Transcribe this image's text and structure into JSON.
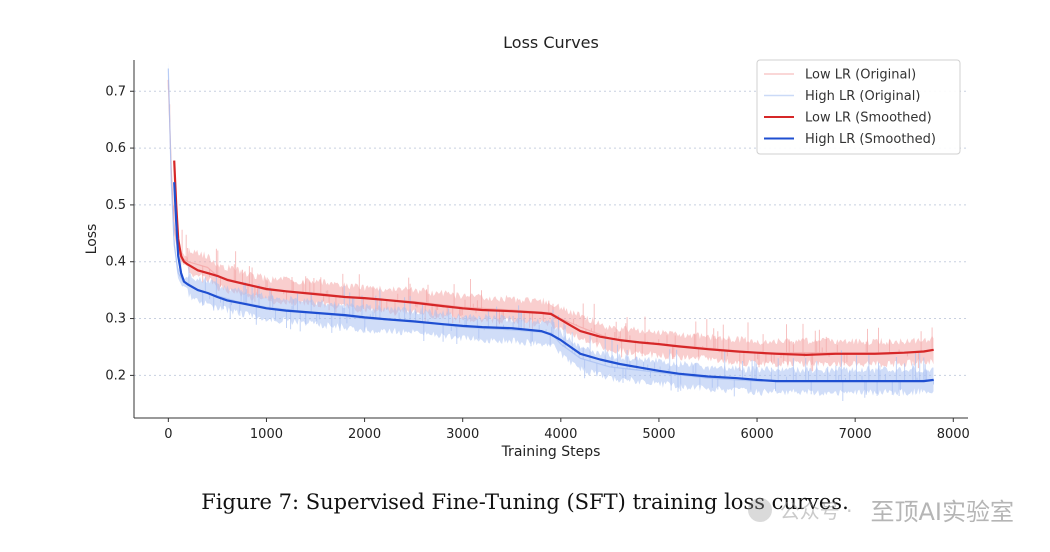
{
  "chart_data": {
    "type": "line",
    "title": "Loss Curves",
    "xlabel": "Training Steps",
    "ylabel": "Loss",
    "xlim": [
      -350,
      8150
    ],
    "ylim": [
      0.125,
      0.755
    ],
    "xticks": [
      0,
      1000,
      2000,
      3000,
      4000,
      5000,
      6000,
      7000,
      8000
    ],
    "yticks": [
      0.2,
      0.3,
      0.4,
      0.5,
      0.6,
      0.7
    ],
    "grid": "horizontal",
    "legend_position": "top-right",
    "series": [
      {
        "name": "Low LR (Original)",
        "style": "raw",
        "color": "#f4a6a6",
        "x": [
          0,
          30,
          60,
          100,
          150,
          200,
          300,
          400,
          500,
          700,
          1000,
          1500,
          2000,
          2500,
          3000,
          3500,
          3900,
          4000,
          4200,
          4500,
          5000,
          5500,
          6000,
          6500,
          7000,
          7500,
          7800
        ],
        "values": [
          0.72,
          0.56,
          0.46,
          0.42,
          0.405,
          0.4,
          0.395,
          0.39,
          0.375,
          0.365,
          0.35,
          0.345,
          0.335,
          0.33,
          0.32,
          0.315,
          0.31,
          0.3,
          0.285,
          0.265,
          0.255,
          0.248,
          0.24,
          0.24,
          0.24,
          0.24,
          0.245
        ]
      },
      {
        "name": "High LR (Original)",
        "style": "raw",
        "color": "#a9c1f2",
        "x": [
          0,
          30,
          60,
          100,
          150,
          200,
          300,
          400,
          500,
          700,
          1000,
          1500,
          2000,
          2500,
          3000,
          3500,
          3900,
          4000,
          4200,
          4500,
          5000,
          5500,
          6000,
          6500,
          7000,
          7500,
          7800
        ],
        "values": [
          0.74,
          0.54,
          0.43,
          0.38,
          0.365,
          0.36,
          0.35,
          0.345,
          0.34,
          0.33,
          0.32,
          0.31,
          0.3,
          0.295,
          0.285,
          0.28,
          0.275,
          0.255,
          0.23,
          0.215,
          0.205,
          0.195,
          0.19,
          0.19,
          0.19,
          0.19,
          0.192
        ]
      },
      {
        "name": "Low LR (Smoothed)",
        "style": "smoothed",
        "color": "#d62728",
        "x": [
          60,
          80,
          100,
          130,
          160,
          200,
          300,
          400,
          500,
          600,
          800,
          1000,
          1200,
          1500,
          1800,
          2000,
          2200,
          2500,
          2800,
          3000,
          3200,
          3500,
          3800,
          3900,
          4000,
          4100,
          4200,
          4400,
          4600,
          4800,
          5000,
          5200,
          5500,
          5800,
          6000,
          6200,
          6500,
          6800,
          7000,
          7200,
          7500,
          7700,
          7800
        ],
        "values": [
          0.578,
          0.5,
          0.44,
          0.41,
          0.4,
          0.395,
          0.385,
          0.38,
          0.375,
          0.368,
          0.36,
          0.352,
          0.348,
          0.343,
          0.338,
          0.336,
          0.333,
          0.328,
          0.322,
          0.318,
          0.315,
          0.313,
          0.31,
          0.308,
          0.298,
          0.288,
          0.278,
          0.268,
          0.262,
          0.258,
          0.255,
          0.251,
          0.246,
          0.242,
          0.24,
          0.238,
          0.236,
          0.238,
          0.238,
          0.238,
          0.24,
          0.242,
          0.245
        ]
      },
      {
        "name": "High LR (Smoothed)",
        "style": "smoothed",
        "color": "#1f4fd1",
        "x": [
          60,
          80,
          100,
          130,
          160,
          200,
          300,
          400,
          500,
          600,
          800,
          1000,
          1200,
          1500,
          1800,
          2000,
          2200,
          2500,
          2800,
          3000,
          3200,
          3500,
          3800,
          3900,
          4000,
          4100,
          4200,
          4400,
          4600,
          4800,
          5000,
          5200,
          5500,
          5800,
          6000,
          6200,
          6500,
          6800,
          7000,
          7200,
          7500,
          7700,
          7800
        ],
        "values": [
          0.54,
          0.47,
          0.41,
          0.38,
          0.365,
          0.36,
          0.35,
          0.345,
          0.338,
          0.332,
          0.325,
          0.318,
          0.314,
          0.31,
          0.306,
          0.302,
          0.299,
          0.295,
          0.29,
          0.287,
          0.285,
          0.283,
          0.278,
          0.272,
          0.262,
          0.25,
          0.238,
          0.228,
          0.22,
          0.214,
          0.208,
          0.203,
          0.198,
          0.195,
          0.192,
          0.19,
          0.19,
          0.19,
          0.19,
          0.19,
          0.19,
          0.19,
          0.192
        ]
      }
    ]
  },
  "caption": "Figure 7: Supervised Fine-Tuning (SFT) training loss curves.",
  "watermark": {
    "sub": "公众号 ·",
    "text": "至顶AI实验室"
  }
}
